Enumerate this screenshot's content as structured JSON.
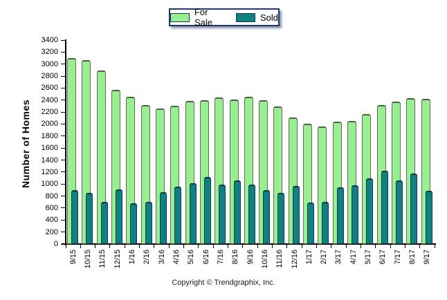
{
  "chart_data": {
    "type": "bar",
    "title": "",
    "ylabel": "Number of Homes",
    "xlabel": "",
    "ylim": [
      0,
      3400
    ],
    "ytick_step": 200,
    "grid": false,
    "legend_position": "top-center",
    "categories": [
      "9/15",
      "10/15",
      "11/15",
      "12/15",
      "1/16",
      "2/16",
      "3/16",
      "4/16",
      "5/16",
      "6/16",
      "7/16",
      "8/16",
      "9/16",
      "10/16",
      "11/16",
      "12/16",
      "1/17",
      "2/17",
      "3/17",
      "4/17",
      "5/17",
      "6/17",
      "7/17",
      "8/17",
      "9/17"
    ],
    "series": [
      {
        "name": "For Sale",
        "values": [
          3100,
          3070,
          2890,
          2570,
          2460,
          2320,
          2260,
          2310,
          2390,
          2400,
          2440,
          2410,
          2450,
          2400,
          2290,
          2110,
          2010,
          1960,
          2040,
          2050,
          2170,
          2320,
          2370,
          2430,
          2420
        ]
      },
      {
        "name": "Sold",
        "values": [
          900,
          850,
          700,
          910,
          680,
          700,
          870,
          960,
          1010,
          1120,
          990,
          1060,
          990,
          900,
          850,
          970,
          690,
          700,
          950,
          980,
          1090,
          1220,
          1060,
          1180,
          890
        ]
      }
    ],
    "y_tick_labels": [
      "0",
      "200",
      "400",
      "600",
      "800",
      "1000",
      "1200",
      "1400",
      "1600",
      "1800",
      "2000",
      "2200",
      "2400",
      "2600",
      "2800",
      "3000",
      "3200",
      "3400"
    ]
  },
  "colors": {
    "for_sale": "#98EE90",
    "sold": "#128080",
    "legend_border": "#1F3864",
    "axis": "#000000"
  },
  "footer": {
    "copyright": "Copyright © Trendgraphix, Inc."
  }
}
